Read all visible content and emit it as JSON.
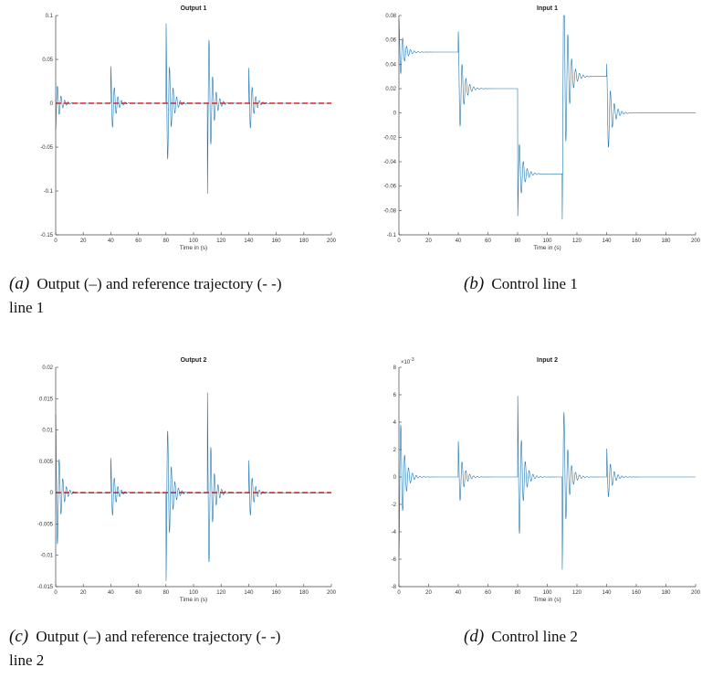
{
  "figure": {
    "captions": [
      {
        "label": "(a)",
        "text": "Output (–) and reference trajectory (- -)",
        "text2": "line 1"
      },
      {
        "label": "(b)",
        "text": "Control line 1",
        "text2": ""
      },
      {
        "label": "(c)",
        "text": "Output (–) and reference trajectory (- -)",
        "text2": "line 2"
      },
      {
        "label": "(d)",
        "text": "Control line 2",
        "text2": ""
      }
    ]
  },
  "chart_data": [
    {
      "type": "line",
      "title": "Output 1",
      "xlabel": "Time in (s)",
      "ylabel": "",
      "xlim": [
        0,
        200
      ],
      "ylim": [
        -0.15,
        0.1
      ],
      "xticks": [
        "0",
        "20",
        "40",
        "60",
        "80",
        "100",
        "120",
        "140",
        "160",
        "180",
        "200"
      ],
      "yticks": [
        "-0.15",
        "-0.1",
        "-0.05",
        "0",
        "0.05",
        "0.1"
      ],
      "reference": {
        "style": "dashed",
        "color": "#d62728",
        "value": 0,
        "x_end": 200
      },
      "series": [
        {
          "color": "#1f77b4",
          "events": [
            {
              "t": 0,
              "amp": 0.03,
              "first": -1,
              "last_peak": -0.075
            },
            {
              "t": 40,
              "amp": 0.042,
              "first": 1
            },
            {
              "t": 80,
              "amp": 0.097,
              "first": 1
            },
            {
              "t": 110,
              "amp": 0.11,
              "first": -1
            },
            {
              "t": 140,
              "amp": 0.043,
              "first": 1
            }
          ],
          "end": 200
        }
      ]
    },
    {
      "type": "line",
      "title": "Input 1",
      "xlabel": "Time in (s)",
      "ylabel": "",
      "xlim": [
        0,
        200
      ],
      "ylim": [
        -0.1,
        0.08
      ],
      "xticks": [
        "0",
        "20",
        "40",
        "60",
        "80",
        "100",
        "120",
        "140",
        "160",
        "180",
        "200"
      ],
      "yticks": [
        "-0.1",
        "-0.08",
        "-0.06",
        "-0.04",
        "-0.02",
        "0",
        "0.02",
        "0.04",
        "0.06",
        "0.08"
      ],
      "series": [
        {
          "color": "#1f77b4",
          "levels": [
            {
              "t": 0,
              "value": 0.05,
              "from": 0,
              "overshoot": 0.077
            },
            {
              "t": 40,
              "value": 0.02,
              "from": 0.05,
              "overshoot": 0.067
            },
            {
              "t": 80,
              "value": -0.05,
              "from": 0.02,
              "overshoot": -0.087
            },
            {
              "t": 110,
              "value": 0.03,
              "from": -0.05,
              "overshoot": -0.095
            },
            {
              "t": 140,
              "value": 0.0,
              "from": 0.03,
              "overshoot": 0.043
            }
          ],
          "end": 200
        }
      ]
    },
    {
      "type": "line",
      "title": "Output 2",
      "xlabel": "Time in (s)",
      "ylabel": "",
      "xlim": [
        0,
        200
      ],
      "ylim": [
        -0.015,
        0.02
      ],
      "xticks": [
        "0",
        "20",
        "40",
        "60",
        "80",
        "100",
        "120",
        "140",
        "160",
        "180",
        "200"
      ],
      "yticks": [
        "-0.015",
        "-0.01",
        "-0.005",
        "0",
        "0.005",
        "0.01",
        "0.015",
        "0.02"
      ],
      "reference": {
        "style": "dashed",
        "color": "#d62728",
        "value": 0,
        "x_end": 200
      },
      "series": [
        {
          "color": "#1f77b4",
          "events": [
            {
              "t": 0,
              "amp": 0.0125,
              "first": 1
            },
            {
              "t": 40,
              "amp": 0.0055,
              "first": 1
            },
            {
              "t": 80,
              "amp": 0.015,
              "first": -1
            },
            {
              "t": 110,
              "amp": 0.017,
              "first": 1
            },
            {
              "t": 140,
              "amp": 0.0055,
              "first": 1
            }
          ],
          "end": 200
        }
      ]
    },
    {
      "type": "line",
      "title": "Input 2",
      "xlabel": "Time in (s)",
      "ylabel": "",
      "xlim": [
        0,
        200
      ],
      "ylim": [
        -8,
        8
      ],
      "yscale_label": "10^{-3}",
      "xticks": [
        "0",
        "20",
        "40",
        "60",
        "80",
        "100",
        "120",
        "140",
        "160",
        "180",
        "200"
      ],
      "yticks": [
        "-8",
        "-6",
        "-4",
        "-2",
        "0",
        "2",
        "4",
        "6",
        "8"
      ],
      "series": [
        {
          "color": "#1f77b4",
          "events": [
            {
              "t": 0,
              "amp": 5.8,
              "first": -1
            },
            {
              "t": 40,
              "amp": 2.6,
              "first": 1
            },
            {
              "t": 80,
              "amp": 6.3,
              "first": 1
            },
            {
              "t": 110,
              "amp": 7.2,
              "first": -1
            },
            {
              "t": 140,
              "amp": 2.2,
              "first": 1
            }
          ],
          "end": 200
        }
      ]
    }
  ]
}
